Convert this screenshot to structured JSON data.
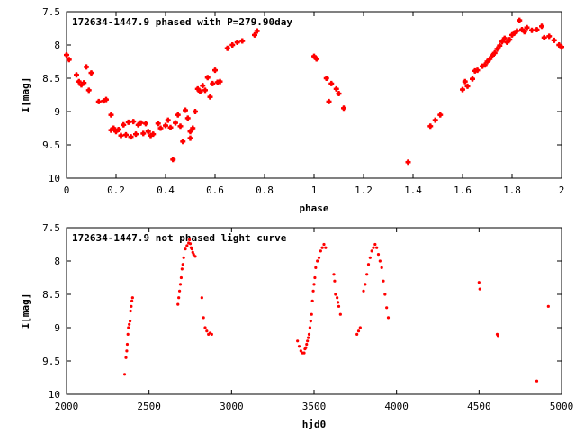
{
  "chart_data": [
    {
      "type": "scatter",
      "title": "172634-1447.9 phased with P=279.90day",
      "xlabel": "phase",
      "ylabel": "I[mag]",
      "xlim": [
        0,
        2
      ],
      "ylim": [
        10,
        7.5
      ],
      "y_inverted": true,
      "grid": false,
      "marker": "cross",
      "color": "#ff0000",
      "x_ticks": [
        "0",
        "0.2",
        "0.4",
        "0.6",
        "0.8",
        "1",
        "1.2",
        "1.4",
        "1.6",
        "1.8",
        "2"
      ],
      "y_ticks": [
        "7.5",
        "8",
        "8.5",
        "9",
        "9.5",
        "10"
      ],
      "x": [
        0.0,
        0.01,
        0.04,
        0.05,
        0.06,
        0.07,
        0.08,
        0.09,
        0.1,
        0.13,
        0.15,
        0.16,
        0.18,
        0.18,
        0.19,
        0.2,
        0.21,
        0.22,
        0.23,
        0.24,
        0.25,
        0.26,
        0.27,
        0.28,
        0.29,
        0.3,
        0.31,
        0.32,
        0.33,
        0.34,
        0.35,
        0.37,
        0.38,
        0.4,
        0.41,
        0.42,
        0.43,
        0.44,
        0.45,
        0.46,
        0.47,
        0.48,
        0.49,
        0.5,
        0.5,
        0.51,
        0.52,
        0.53,
        0.54,
        0.55,
        0.56,
        0.57,
        0.58,
        0.59,
        0.6,
        0.61,
        0.62,
        0.65,
        0.67,
        0.69,
        0.71,
        0.76,
        0.77,
        1.0,
        1.01,
        1.05,
        1.06,
        1.07,
        1.09,
        1.1,
        1.12,
        1.38,
        1.47,
        1.49,
        1.51,
        1.6,
        1.61,
        1.62,
        1.64,
        1.65,
        1.66,
        1.68,
        1.69,
        1.7,
        1.71,
        1.72,
        1.73,
        1.74,
        1.75,
        1.76,
        1.77,
        1.78,
        1.79,
        1.8,
        1.81,
        1.82,
        1.83,
        1.84,
        1.85,
        1.86,
        1.88,
        1.9,
        1.92,
        1.93,
        1.95,
        1.97,
        1.99,
        2.0
      ],
      "y": [
        8.15,
        8.22,
        8.45,
        8.55,
        8.6,
        8.57,
        8.33,
        8.68,
        8.42,
        8.85,
        8.84,
        8.82,
        9.28,
        9.05,
        9.25,
        9.3,
        9.27,
        9.36,
        9.2,
        9.35,
        9.16,
        9.38,
        9.15,
        9.34,
        9.2,
        9.17,
        9.33,
        9.18,
        9.3,
        9.36,
        9.34,
        9.18,
        9.25,
        9.21,
        9.13,
        9.24,
        9.72,
        9.17,
        9.05,
        9.22,
        9.45,
        8.98,
        9.1,
        9.3,
        9.4,
        9.25,
        9.0,
        8.66,
        8.7,
        8.61,
        8.68,
        8.49,
        8.78,
        8.58,
        8.38,
        8.56,
        8.55,
        8.05,
        8.0,
        7.96,
        7.94,
        7.85,
        7.79,
        8.17,
        8.21,
        8.5,
        8.85,
        8.58,
        8.66,
        8.73,
        8.95,
        9.76,
        9.22,
        9.13,
        9.05,
        8.67,
        8.55,
        8.62,
        8.51,
        8.39,
        8.38,
        8.32,
        8.3,
        8.25,
        8.21,
        8.16,
        8.12,
        8.06,
        8.01,
        7.95,
        7.9,
        7.96,
        7.92,
        7.85,
        7.82,
        7.79,
        7.63,
        7.77,
        7.8,
        7.74,
        7.78,
        7.77,
        7.72,
        7.89,
        7.87,
        7.93,
        8.0,
        8.03
      ]
    },
    {
      "type": "scatter",
      "title": "172634-1447.9 not phased light curve",
      "xlabel": "hjd0",
      "ylabel": "I[mag]",
      "xlim": [
        2000,
        5000
      ],
      "ylim": [
        10,
        7.5
      ],
      "y_inverted": true,
      "grid": false,
      "marker": "dot",
      "color": "#ff0000",
      "x_ticks": [
        "2000",
        "2500",
        "3000",
        "3500",
        "4000",
        "4500",
        "5000"
      ],
      "y_ticks": [
        "7.5",
        "8",
        "8.5",
        "9",
        "9.5",
        "10"
      ],
      "x": [
        2352,
        2360,
        2365,
        2368,
        2372,
        2375,
        2380,
        2385,
        2388,
        2392,
        2396,
        2400,
        2675,
        2680,
        2685,
        2690,
        2695,
        2700,
        2705,
        2710,
        2720,
        2730,
        2740,
        2745,
        2750,
        2755,
        2760,
        2765,
        2770,
        2780,
        2820,
        2830,
        2840,
        2850,
        2860,
        2870,
        2880,
        3400,
        3410,
        3420,
        3430,
        3440,
        3445,
        3450,
        3455,
        3460,
        3465,
        3470,
        3475,
        3480,
        3485,
        3490,
        3495,
        3500,
        3505,
        3510,
        3520,
        3530,
        3540,
        3550,
        3560,
        3570,
        3620,
        3625,
        3630,
        3640,
        3645,
        3650,
        3660,
        3760,
        3770,
        3780,
        3800,
        3810,
        3820,
        3830,
        3840,
        3850,
        3860,
        3870,
        3880,
        3890,
        3900,
        3910,
        3920,
        3930,
        3940,
        3950,
        4500,
        4505,
        4610,
        4615,
        4850,
        4920
      ],
      "y": [
        9.7,
        9.45,
        9.35,
        9.25,
        9.1,
        9.0,
        8.95,
        8.9,
        8.75,
        8.68,
        8.6,
        8.55,
        8.65,
        8.55,
        8.45,
        8.35,
        8.25,
        8.12,
        8.05,
        7.95,
        7.82,
        7.77,
        7.73,
        7.68,
        7.74,
        7.8,
        7.82,
        7.87,
        7.9,
        7.93,
        8.55,
        8.85,
        9.0,
        9.05,
        9.1,
        9.08,
        9.1,
        9.2,
        9.28,
        9.35,
        9.38,
        9.38,
        9.32,
        9.3,
        9.25,
        9.2,
        9.15,
        9.1,
        9.0,
        8.9,
        8.8,
        8.6,
        8.45,
        8.35,
        8.25,
        8.1,
        8.0,
        7.95,
        7.85,
        7.8,
        7.75,
        7.8,
        8.2,
        8.3,
        8.5,
        8.55,
        8.62,
        8.68,
        8.8,
        9.1,
        9.05,
        9.0,
        8.45,
        8.35,
        8.2,
        8.05,
        7.95,
        7.85,
        7.8,
        7.75,
        7.8,
        7.9,
        8.0,
        8.1,
        8.3,
        8.5,
        8.7,
        8.85,
        8.32,
        8.42,
        9.1,
        9.12,
        9.8,
        8.68
      ]
    }
  ]
}
